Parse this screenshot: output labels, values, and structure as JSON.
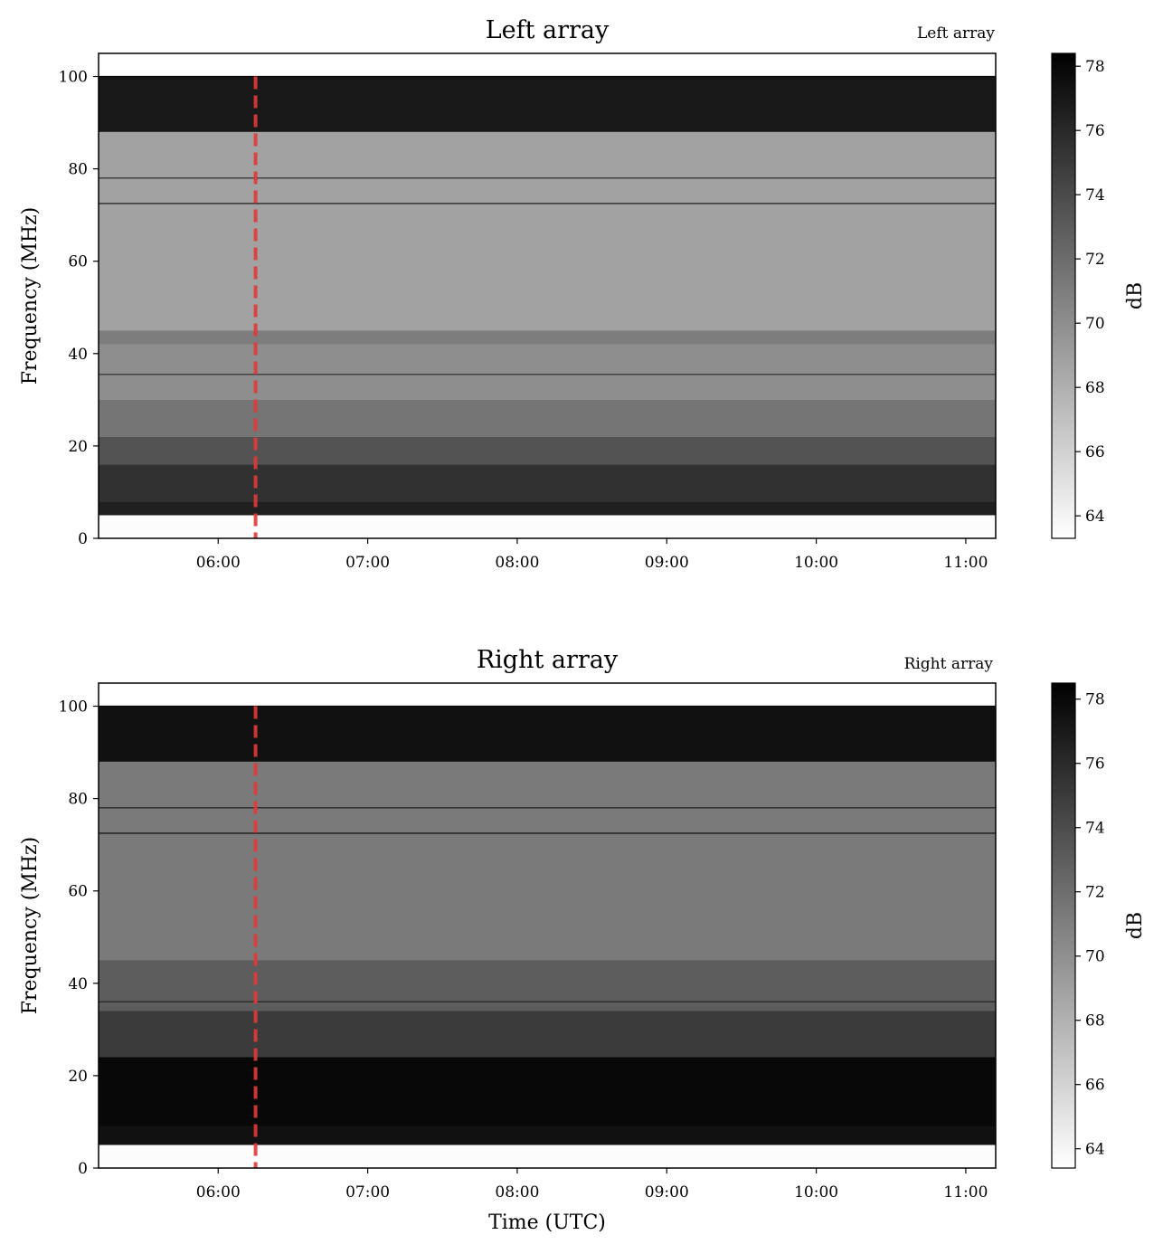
{
  "figure": {
    "shared_xlabel": "Time (UTC)"
  },
  "colors": {
    "marker_line": "#e03a3a",
    "colormap_low": "#ffffff",
    "colormap_high": "#000000"
  },
  "chart_data": [
    {
      "type": "heatmap",
      "title": "Left array",
      "corner_label": "Left array",
      "xlabel": "",
      "ylabel": "Frequency (MHz)",
      "x_ticks": [
        "06:00",
        "07:00",
        "08:00",
        "09:00",
        "10:00",
        "11:00"
      ],
      "x_range_hours": [
        5.2,
        11.2
      ],
      "y_ticks": [
        0,
        20,
        40,
        60,
        80,
        100
      ],
      "ylim": [
        0,
        105
      ],
      "colorbar": {
        "label": "dB",
        "ticks": [
          64,
          66,
          68,
          70,
          72,
          74,
          76,
          78
        ],
        "range": [
          63.3,
          78.4
        ]
      },
      "marker_line": {
        "time": "06:15",
        "style": "dashed"
      },
      "background_level_db": 69,
      "bands": [
        {
          "f0": 0,
          "f1": 5,
          "db": 63.5
        },
        {
          "f0": 5,
          "f1": 8,
          "db": 76.5
        },
        {
          "f0": 8,
          "f1": 16,
          "db": 75.5
        },
        {
          "f0": 16,
          "f1": 22,
          "db": 73.5
        },
        {
          "f0": 22,
          "f1": 30,
          "db": 71.5
        },
        {
          "f0": 30,
          "f1": 42,
          "db": 70
        },
        {
          "f0": 42,
          "f1": 45,
          "db": 71
        },
        {
          "f0": 45,
          "f1": 88,
          "db": 68.8
        },
        {
          "f0": 88,
          "f1": 100,
          "db": 77
        },
        {
          "f0": 100,
          "f1": 105,
          "db": 63.3
        }
      ],
      "lines": [
        {
          "freq": 72.5,
          "db": 76
        },
        {
          "freq": 78,
          "db": 75
        },
        {
          "freq": 35.5,
          "db": 75
        },
        {
          "freq": 100,
          "db": 78
        }
      ]
    },
    {
      "type": "heatmap",
      "title": "Right array",
      "corner_label": "Right array",
      "xlabel": "Time (UTC)",
      "ylabel": "Frequency (MHz)",
      "x_ticks": [
        "06:00",
        "07:00",
        "08:00",
        "09:00",
        "10:00",
        "11:00"
      ],
      "x_range_hours": [
        5.2,
        11.2
      ],
      "y_ticks": [
        0,
        20,
        40,
        60,
        80,
        100
      ],
      "ylim": [
        0,
        105
      ],
      "colorbar": {
        "label": "dB",
        "ticks": [
          64,
          66,
          68,
          70,
          72,
          74,
          76,
          78
        ],
        "range": [
          63.4,
          78.5
        ]
      },
      "marker_line": {
        "time": "06:15",
        "style": "dashed"
      },
      "background_level_db": 71.5,
      "bands": [
        {
          "f0": 0,
          "f1": 5,
          "db": 63.6
        },
        {
          "f0": 5,
          "f1": 9,
          "db": 77.5
        },
        {
          "f0": 9,
          "f1": 24,
          "db": 78
        },
        {
          "f0": 24,
          "f1": 34,
          "db": 75
        },
        {
          "f0": 34,
          "f1": 45,
          "db": 73
        },
        {
          "f0": 45,
          "f1": 88,
          "db": 71.3
        },
        {
          "f0": 88,
          "f1": 100,
          "db": 77.5
        },
        {
          "f0": 100,
          "f1": 105,
          "db": 63.4
        }
      ],
      "lines": [
        {
          "freq": 72.5,
          "db": 77
        },
        {
          "freq": 78,
          "db": 76
        },
        {
          "freq": 36,
          "db": 76
        },
        {
          "freq": 100,
          "db": 78
        }
      ]
    }
  ]
}
